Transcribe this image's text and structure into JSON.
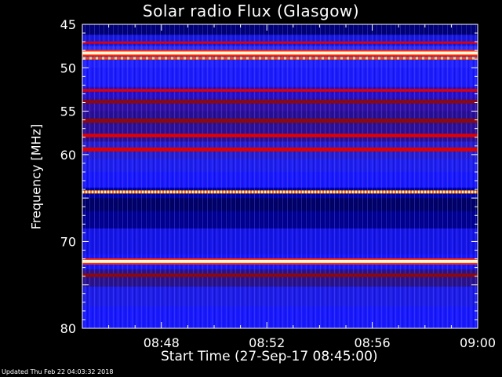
{
  "chart_data": {
    "type": "heatmap",
    "title": "Solar radio Flux (Glasgow)",
    "xlabel": "Start Time (27-Sep-17 08:45:00)",
    "ylabel": "Frequency [MHz]",
    "x_ticks": [
      "08:48",
      "08:52",
      "08:56",
      "09:00"
    ],
    "x_tick_minutes": [
      3,
      7,
      11,
      15
    ],
    "xlim_minutes": [
      0,
      15
    ],
    "y_ticks": [
      45,
      50,
      55,
      60,
      65,
      70,
      75,
      80
    ],
    "y_tick_labels": [
      "45",
      "50",
      "55",
      "60",
      "",
      "70",
      "",
      "80"
    ],
    "ylim": [
      45,
      80
    ],
    "y_inverted": true,
    "bands": [
      {
        "mhz": 47.1,
        "width": 0.25,
        "level": "red"
      },
      {
        "mhz": 48.3,
        "width": 0.35,
        "level": "white"
      },
      {
        "mhz": 48.9,
        "width": 0.3,
        "level": "orange-dashed"
      },
      {
        "mhz": 52.6,
        "width": 0.3,
        "level": "red"
      },
      {
        "mhz": 53.9,
        "width": 0.4,
        "level": "dark-red"
      },
      {
        "mhz": 56.1,
        "width": 0.5,
        "level": "dark-red"
      },
      {
        "mhz": 57.8,
        "width": 0.4,
        "level": "red"
      },
      {
        "mhz": 59.4,
        "width": 0.45,
        "level": "red"
      },
      {
        "mhz": 64.3,
        "width": 0.35,
        "level": "yellow-dashed"
      },
      {
        "mhz": 72.3,
        "width": 0.35,
        "level": "white"
      },
      {
        "mhz": 73.9,
        "width": 0.4,
        "level": "dark-red"
      }
    ]
  },
  "footer": "Updated Thu Feb 22 04:03:32 2018",
  "colors": {
    "background": "#000000",
    "low": "#1a1aff",
    "quiet": "#000070",
    "hot": "#ff2000",
    "peak": "#ffffc0"
  }
}
